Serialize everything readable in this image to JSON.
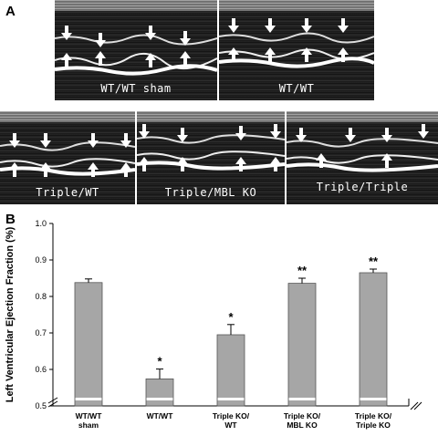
{
  "panel_a_letter": "A",
  "panel_b_letter": "B",
  "echo_images": [
    {
      "label": "WT/WT sham"
    },
    {
      "label": "WT/WT"
    },
    {
      "label": "Triple/WT"
    },
    {
      "label": "Triple/MBL KO"
    },
    {
      "label": "Triple/Triple"
    }
  ],
  "colors": {
    "bar_fill": "#a6a6a6",
    "bar_stroke": "#555555",
    "axis": "#000000"
  },
  "chart_data": {
    "type": "bar",
    "title": "",
    "ylabel": "Left Ventricular Ejection Fraction (%)",
    "xlabel": "",
    "ylim": [
      0.5,
      1.0
    ],
    "y_ticks": [
      "0.5",
      "0.6",
      "0.7",
      "0.8",
      "0.9",
      "1.0"
    ],
    "axis_break": true,
    "grid": false,
    "categories": [
      [
        "WT/WT",
        "sham"
      ],
      [
        "WT/WT"
      ],
      [
        "Triple KO/",
        "WT"
      ],
      [
        "Triple KO/",
        "MBL KO"
      ],
      [
        "Triple KO/",
        "Triple KO"
      ]
    ],
    "values": [
      0.838,
      0.574,
      0.695,
      0.836,
      0.865
    ],
    "errors": [
      0.01,
      0.027,
      0.028,
      0.014,
      0.01
    ],
    "significance": [
      "",
      "*",
      "*",
      "**",
      "**"
    ]
  }
}
